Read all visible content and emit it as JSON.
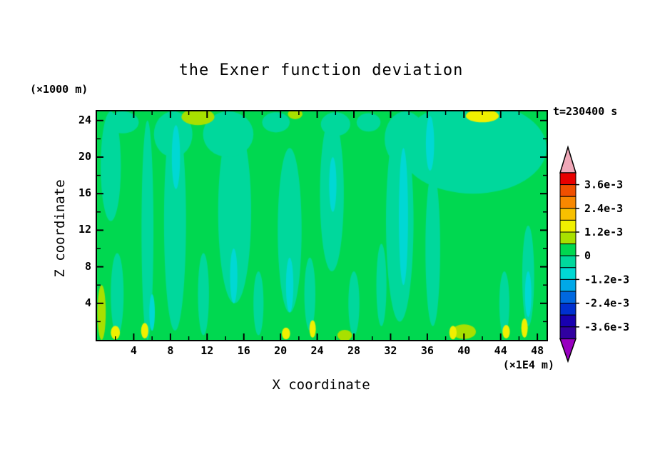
{
  "chart_data": {
    "type": "heatmap",
    "title": "the Exner function deviation",
    "xlabel": "X coordinate",
    "ylabel": "Z coordinate",
    "x_unit_label": "(×1E4 m)",
    "y_unit_label": "(×1000 m)",
    "time_label": "t=230400 s",
    "x_range": [
      0,
      49
    ],
    "z_range": [
      0,
      25
    ],
    "x_ticks_major": [
      4,
      8,
      12,
      16,
      20,
      24,
      28,
      32,
      36,
      40,
      44,
      48
    ],
    "x_ticks_minor": [
      2,
      6,
      10,
      14,
      18,
      22,
      26,
      30,
      34,
      38,
      42,
      46
    ],
    "z_ticks_major": [
      4,
      8,
      12,
      16,
      20,
      24
    ],
    "z_ticks_minor": [
      2,
      6,
      10,
      14,
      18,
      22
    ],
    "grid": false,
    "legend_position": "right",
    "colorbar": {
      "labels": [
        "3.6e-3",
        "2.4e-3",
        "1.2e-3",
        "0",
        "-1.2e-3",
        "-2.4e-3",
        "-3.6e-3"
      ],
      "level_step": 0.0006,
      "level_max_labeled": 0.0036,
      "level_min_labeled": -0.0036,
      "band_colors": [
        "#e80000",
        "#f05000",
        "#f88800",
        "#f8c000",
        "#f0f000",
        "#a8e000",
        "#00d850",
        "#00d89c",
        "#00d8d4",
        "#00a8e8",
        "#0068e0",
        "#0030d0",
        "#1800b0",
        "#3000a0"
      ],
      "arrow_top_color": "#f0a8b8",
      "arrow_bottom_color": "#9800c0"
    },
    "field": {
      "background_band": 6,
      "shapes": [
        {
          "band": 7,
          "x": 1.5,
          "z": 19,
          "w": 2.2,
          "h": 12
        },
        {
          "band": 7,
          "x": 2.8,
          "z": 23.8,
          "w": 3.5,
          "h": 2.4
        },
        {
          "band": 7,
          "x": 5.5,
          "z": 12,
          "w": 1.3,
          "h": 24
        },
        {
          "band": 7,
          "x": 8.5,
          "z": 13,
          "w": 2.4,
          "h": 24
        },
        {
          "band": 7,
          "x": 8.3,
          "z": 22.5,
          "w": 4.2,
          "h": 5
        },
        {
          "band": 7,
          "x": 15,
          "z": 14,
          "w": 3.6,
          "h": 20
        },
        {
          "band": 7,
          "x": 14.3,
          "z": 22.5,
          "w": 5.5,
          "h": 5
        },
        {
          "band": 7,
          "x": 21,
          "z": 12,
          "w": 2.6,
          "h": 18
        },
        {
          "band": 7,
          "x": 19.5,
          "z": 23.8,
          "w": 3.0,
          "h": 2.2
        },
        {
          "band": 7,
          "x": 25.6,
          "z": 16,
          "w": 2.6,
          "h": 17
        },
        {
          "band": 7,
          "x": 26,
          "z": 23.6,
          "w": 3.2,
          "h": 2.6
        },
        {
          "band": 7,
          "x": 29.6,
          "z": 23.8,
          "w": 2.6,
          "h": 2
        },
        {
          "band": 7,
          "x": 33,
          "z": 13,
          "w": 3.0,
          "h": 22
        },
        {
          "band": 7,
          "x": 33.6,
          "z": 22,
          "w": 4.5,
          "h": 6
        },
        {
          "band": 7,
          "x": 41,
          "z": 21,
          "w": 16,
          "h": 10
        },
        {
          "band": 7,
          "x": 36.6,
          "z": 10,
          "w": 1.6,
          "h": 17
        },
        {
          "band": 7,
          "x": 2.2,
          "z": 5,
          "w": 1.4,
          "h": 9
        },
        {
          "band": 7,
          "x": 11.6,
          "z": 5,
          "w": 1.2,
          "h": 9
        },
        {
          "band": 7,
          "x": 17.6,
          "z": 4,
          "w": 1.1,
          "h": 7
        },
        {
          "band": 7,
          "x": 23.2,
          "z": 5,
          "w": 1.2,
          "h": 8
        },
        {
          "band": 7,
          "x": 28,
          "z": 4,
          "w": 1.2,
          "h": 7
        },
        {
          "band": 7,
          "x": 31,
          "z": 6,
          "w": 1.1,
          "h": 9
        },
        {
          "band": 7,
          "x": 44.4,
          "z": 4,
          "w": 1.1,
          "h": 7
        },
        {
          "band": 7,
          "x": 47,
          "z": 7,
          "w": 1.3,
          "h": 11
        },
        {
          "band": 8,
          "x": 8.6,
          "z": 20,
          "w": 0.9,
          "h": 7
        },
        {
          "band": 8,
          "x": 14.9,
          "z": 7,
          "w": 0.8,
          "h": 6
        },
        {
          "band": 8,
          "x": 21,
          "z": 6,
          "w": 0.8,
          "h": 6
        },
        {
          "band": 8,
          "x": 25.7,
          "z": 17,
          "w": 0.8,
          "h": 6
        },
        {
          "band": 8,
          "x": 33.4,
          "z": 13.5,
          "w": 1.0,
          "h": 15
        },
        {
          "band": 8,
          "x": 36.3,
          "z": 21.5,
          "w": 0.9,
          "h": 6
        },
        {
          "band": 8,
          "x": 6,
          "z": 3,
          "w": 0.6,
          "h": 4
        },
        {
          "band": 8,
          "x": 47,
          "z": 5,
          "w": 0.7,
          "h": 5
        },
        {
          "band": 5,
          "x": 11,
          "z": 24.4,
          "w": 3.6,
          "h": 1.8
        },
        {
          "band": 5,
          "x": 21.6,
          "z": 24.7,
          "w": 1.6,
          "h": 1.1
        },
        {
          "band": 5,
          "x": 27,
          "z": 0.5,
          "w": 1.6,
          "h": 1.2
        },
        {
          "band": 5,
          "x": 40,
          "z": 0.9,
          "w": 2.6,
          "h": 1.6
        },
        {
          "band": 5,
          "x": 0.5,
          "z": 3,
          "w": 0.9,
          "h": 6
        },
        {
          "band": 4,
          "x": 42,
          "z": 24.5,
          "w": 3.6,
          "h": 1.4
        },
        {
          "band": 4,
          "x": 2,
          "z": 0.8,
          "w": 1.0,
          "h": 1.5
        },
        {
          "band": 4,
          "x": 5.2,
          "z": 1,
          "w": 0.8,
          "h": 1.7
        },
        {
          "band": 4,
          "x": 20.6,
          "z": 0.7,
          "w": 0.9,
          "h": 1.3
        },
        {
          "band": 4,
          "x": 23.5,
          "z": 1.2,
          "w": 0.7,
          "h": 1.9
        },
        {
          "band": 4,
          "x": 38.8,
          "z": 0.8,
          "w": 0.8,
          "h": 1.5
        },
        {
          "band": 4,
          "x": 44.6,
          "z": 0.9,
          "w": 0.8,
          "h": 1.5
        },
        {
          "band": 4,
          "x": 46.6,
          "z": 1.3,
          "w": 0.7,
          "h": 2.1
        }
      ]
    }
  }
}
